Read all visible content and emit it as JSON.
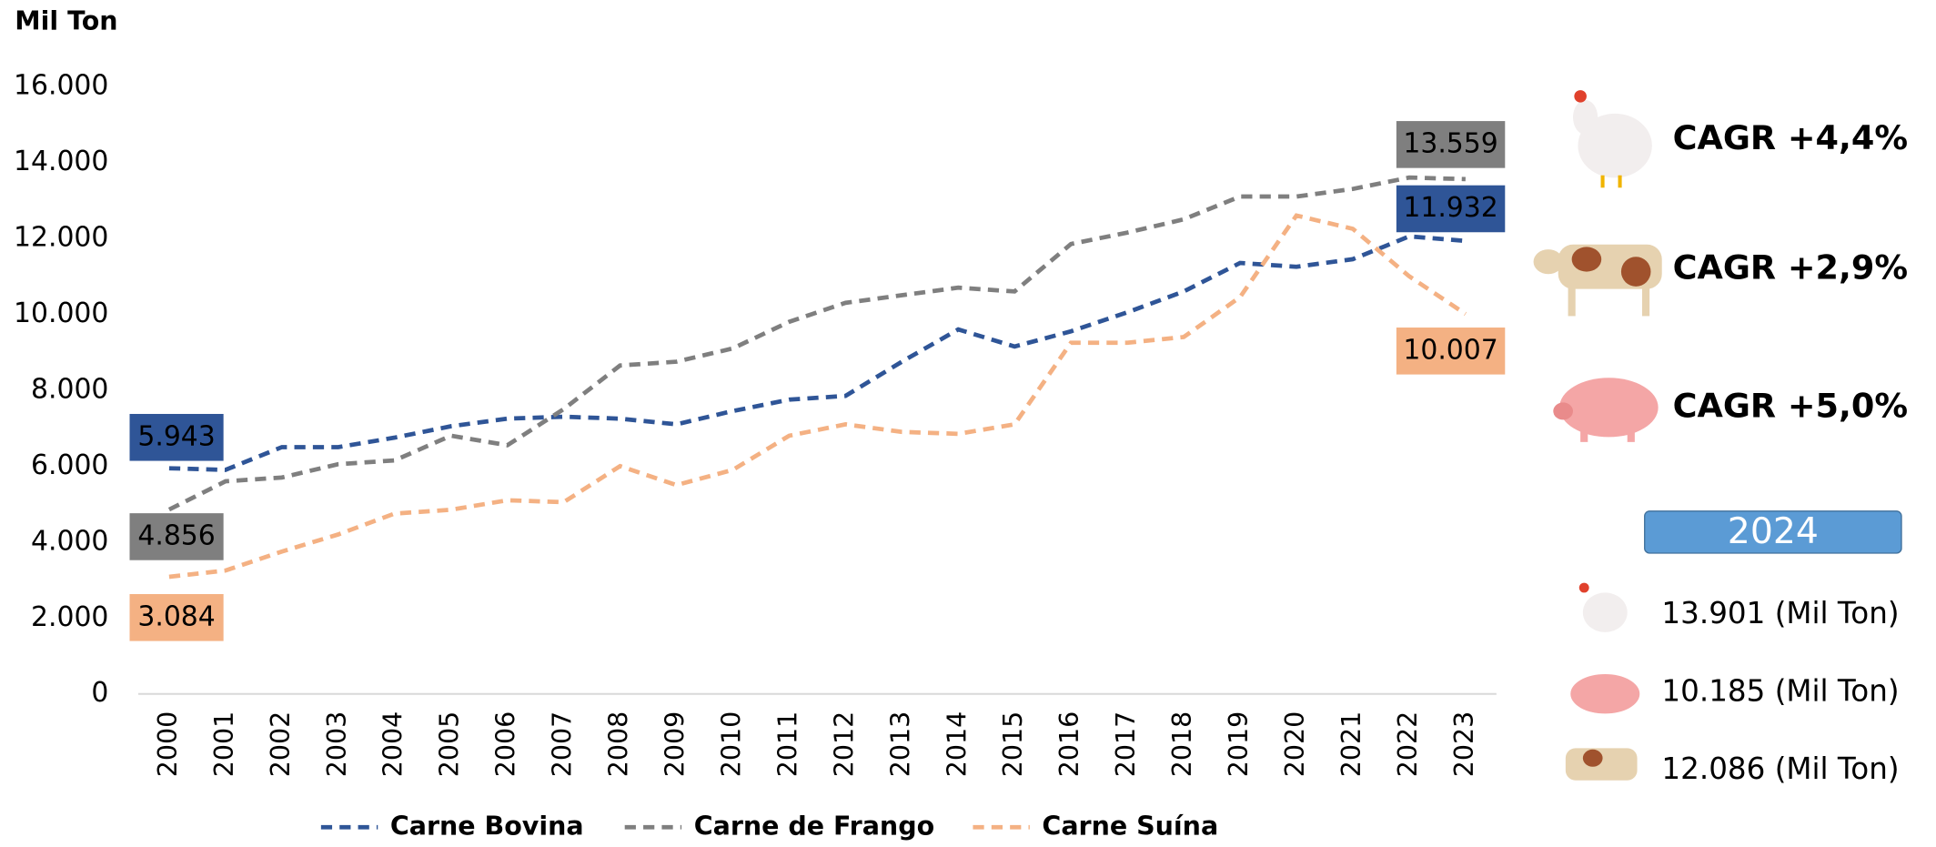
{
  "chart_data": {
    "type": "line",
    "y_axis_label": "Mil Ton",
    "categories": [
      "2000",
      "2001",
      "2002",
      "2003",
      "2004",
      "2005",
      "2006",
      "2007",
      "2008",
      "2009",
      "2010",
      "2011",
      "2012",
      "2013",
      "2014",
      "2015",
      "2016",
      "2017",
      "2018",
      "2019",
      "2020",
      "2021",
      "2022",
      "2023"
    ],
    "ylim": [
      0,
      16000
    ],
    "yticks": [
      0,
      {
        "value": 2000,
        "label": "2.000"
      },
      {
        "value": 4000,
        "label": "4.000"
      },
      {
        "value": 6000,
        "label": "6.000"
      },
      {
        "value": 8000,
        "label": "8.000"
      },
      {
        "value": 10000,
        "label": "10.000"
      },
      {
        "value": 12000,
        "label": "12.000"
      },
      {
        "value": 14000,
        "label": "14.000"
      },
      {
        "value": 16000,
        "label": "16.000"
      }
    ],
    "grid": false,
    "legend": "bottom",
    "series": [
      {
        "name": "Carne Bovina",
        "color": "#2f5597",
        "values": [
          5943,
          5900,
          6500,
          6500,
          6750,
          7050,
          7250,
          7300,
          7250,
          7100,
          7450,
          7750,
          7850,
          8750,
          9600,
          9150,
          9550,
          10050,
          10600,
          11350,
          11250,
          11450,
          12050,
          11932
        ],
        "value_labels": [
          "5.943",
          null,
          null,
          null,
          null,
          null,
          null,
          null,
          null,
          null,
          null,
          null,
          null,
          null,
          null,
          null,
          null,
          null,
          null,
          null,
          null,
          null,
          null,
          "11.932"
        ]
      },
      {
        "name": "Carne de Frango",
        "color": "#7f7f7f",
        "values": [
          4856,
          5600,
          5700,
          6050,
          6150,
          6800,
          6550,
          7500,
          8650,
          8750,
          9100,
          9800,
          10300,
          10500,
          10700,
          10600,
          11850,
          12150,
          12500,
          13100,
          13100,
          13300,
          13600,
          13559
        ],
        "value_labels": [
          "4.856",
          null,
          null,
          null,
          null,
          null,
          null,
          null,
          null,
          null,
          null,
          null,
          null,
          null,
          null,
          null,
          null,
          null,
          null,
          null,
          null,
          null,
          null,
          "13.559"
        ]
      },
      {
        "name": "Carne Suína",
        "color": "#f4b183",
        "values": [
          3084,
          3250,
          3750,
          4200,
          4750,
          4850,
          5100,
          5050,
          6000,
          5500,
          5900,
          6800,
          7100,
          6900,
          6850,
          7100,
          9250,
          9250,
          9400,
          10450,
          12600,
          12250,
          11000,
          10007
        ],
        "value_labels": [
          "3.084",
          null,
          null,
          null,
          null,
          null,
          null,
          null,
          null,
          null,
          null,
          null,
          null,
          null,
          null,
          null,
          null,
          null,
          null,
          null,
          null,
          null,
          null,
          "10.007"
        ]
      }
    ]
  },
  "side_panel": {
    "cagr": [
      "CAGR +4,4%",
      "CAGR +2,9%",
      "CAGR +5,0%"
    ],
    "year": "2024",
    "items": [
      "13.901 (Mil Ton)",
      "10.185 (Mil Ton)",
      "12.086 (Mil Ton)"
    ]
  }
}
